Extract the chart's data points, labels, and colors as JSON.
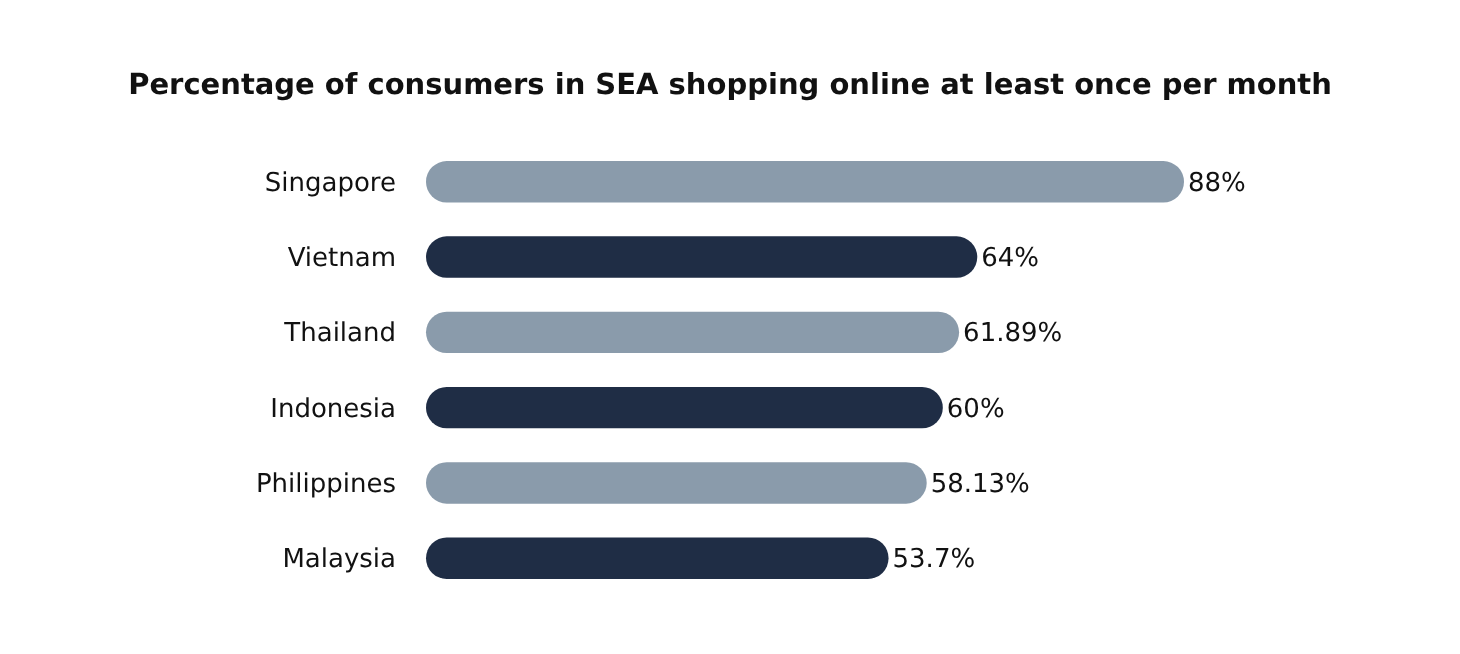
{
  "chart_data": {
    "type": "bar",
    "orientation": "horizontal",
    "title": "Percentage of consumers in SEA shopping online at least once per month",
    "categories": [
      "Singapore",
      "Vietnam",
      "Thailand",
      "Indonesia",
      "Philippines",
      "Malaysia"
    ],
    "values": [
      88,
      64,
      61.89,
      60,
      58.13,
      53.7
    ],
    "colors": [
      "#8a9bab",
      "#1f2d45",
      "#8a9bab",
      "#1f2d45",
      "#8a9bab",
      "#1f2d45"
    ],
    "value_labels": [
      "88%",
      "64%",
      "61.89%",
      "60%",
      "58.13%",
      "53.7%"
    ]
  }
}
